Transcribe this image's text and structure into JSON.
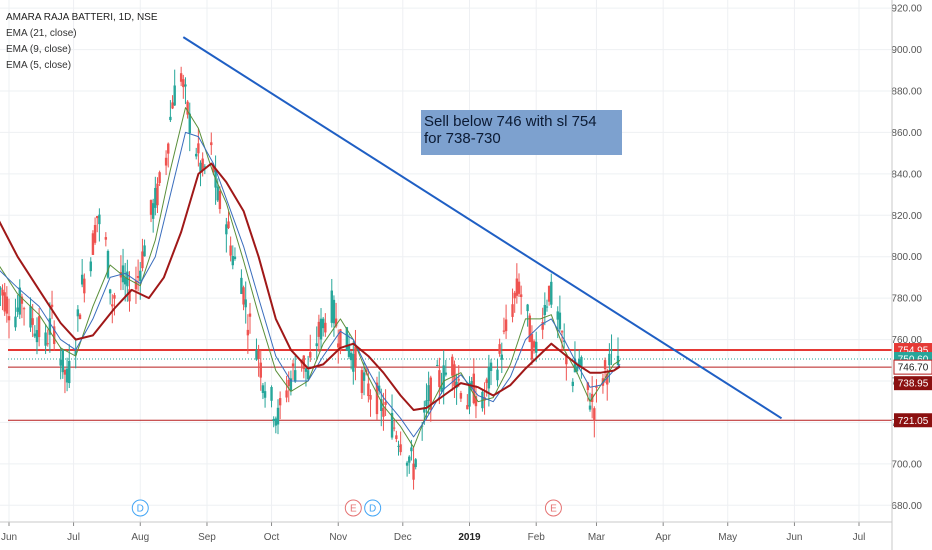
{
  "legend": {
    "title": "AMARA RAJA BATTERI, 1D, NSE",
    "indicators": [
      "EMA (21, close)",
      "EMA (9, close)",
      "EMA (5, close)"
    ]
  },
  "annotation": {
    "line1": "Sell below 746 with sl 754",
    "line2": "for 738-730"
  },
  "colors": {
    "up": "#26a69a",
    "down": "#ef5350",
    "ema21": "#a01818",
    "ema9": "#3a6dbd",
    "ema5": "#5a8f3a",
    "trendline": "#1f5fc4",
    "axis_text": "#555555",
    "grid": "#eef0f3"
  },
  "chart_data": {
    "type": "candlestick",
    "y_axis": {
      "range": [
        670,
        922
      ],
      "ticks": [
        "680.00",
        "700.00",
        "720.00",
        "740.00",
        "760.00",
        "780.00",
        "800.00",
        "820.00",
        "840.00",
        "860.00",
        "880.00",
        "900.00",
        "920.00"
      ]
    },
    "x_axis": {
      "ticks": [
        {
          "label": "Jun",
          "date": "2018-06-01"
        },
        {
          "label": "Jul",
          "date": "2018-07-01"
        },
        {
          "label": "Aug",
          "date": "2018-08-01"
        },
        {
          "label": "Sep",
          "date": "2018-09-01"
        },
        {
          "label": "Oct",
          "date": "2018-10-01"
        },
        {
          "label": "Nov",
          "date": "2018-11-01"
        },
        {
          "label": "Dec",
          "date": "2018-12-01"
        },
        {
          "label": "2019",
          "date": "2019-01-01",
          "bold": true
        },
        {
          "label": "Feb",
          "date": "2019-02-01"
        },
        {
          "label": "Mar",
          "date": "2019-03-01"
        },
        {
          "label": "Apr",
          "date": "2019-04-01"
        },
        {
          "label": "May",
          "date": "2019-05-01"
        },
        {
          "label": "Jun",
          "date": "2019-06-01"
        },
        {
          "label": "Jul",
          "date": "2019-07-01"
        }
      ]
    },
    "price_levels": [
      {
        "label": "754.95",
        "value": 754.95,
        "color": "#e53935",
        "style": "solid",
        "tag": "filled-red"
      },
      {
        "label": "750.60",
        "value": 750.6,
        "color": "#26a69a",
        "style": "dotted",
        "tag": "filled-teal"
      },
      {
        "label": "746.70",
        "value": 746.7,
        "color": "#b71c1c",
        "style": "solid",
        "tag": "outline"
      },
      {
        "label": "738.95",
        "value": 738.95,
        "color": "#b71c1c",
        "style": "none",
        "tag": "filled-darkred"
      },
      {
        "label": "721.05",
        "value": 721.05,
        "color": "#b71c1c",
        "style": "solid",
        "tag": "filled-darkred"
      }
    ],
    "trendline": {
      "from": {
        "date": "2018-08-21",
        "value": 906
      },
      "to": {
        "date": "2019-05-26",
        "value": 722
      }
    },
    "events": [
      {
        "label": "D",
        "date": "2018-08-01",
        "kind": "dividend"
      },
      {
        "label": "E",
        "date": "2018-11-08",
        "kind": "earnings"
      },
      {
        "label": "D",
        "date": "2018-11-17",
        "kind": "dividend"
      },
      {
        "label": "E",
        "date": "2019-02-09",
        "kind": "earnings"
      }
    ],
    "ema21": [
      [
        "2018-05-26",
        820
      ],
      [
        "2018-06-05",
        800
      ],
      [
        "2018-06-15",
        784
      ],
      [
        "2018-06-25",
        768
      ],
      [
        "2018-07-02",
        760
      ],
      [
        "2018-07-10",
        762
      ],
      [
        "2018-07-20",
        775
      ],
      [
        "2018-07-28",
        784
      ],
      [
        "2018-08-05",
        780
      ],
      [
        "2018-08-12",
        790
      ],
      [
        "2018-08-20",
        812
      ],
      [
        "2018-08-28",
        840
      ],
      [
        "2018-09-03",
        845
      ],
      [
        "2018-09-10",
        836
      ],
      [
        "2018-09-18",
        822
      ],
      [
        "2018-09-25",
        800
      ],
      [
        "2018-10-03",
        770
      ],
      [
        "2018-10-10",
        755
      ],
      [
        "2018-10-18",
        746
      ],
      [
        "2018-10-25",
        748
      ],
      [
        "2018-11-02",
        756
      ],
      [
        "2018-11-08",
        758
      ],
      [
        "2018-11-15",
        752
      ],
      [
        "2018-11-22",
        744
      ],
      [
        "2018-11-30",
        733
      ],
      [
        "2018-12-06",
        726
      ],
      [
        "2018-12-12",
        727
      ],
      [
        "2018-12-20",
        733
      ],
      [
        "2018-12-28",
        739
      ],
      [
        "2019-01-05",
        737
      ],
      [
        "2019-01-12",
        733
      ],
      [
        "2019-01-20",
        738
      ],
      [
        "2019-01-27",
        746
      ],
      [
        "2019-02-03",
        753
      ],
      [
        "2019-02-08",
        758
      ],
      [
        "2019-02-14",
        753
      ],
      [
        "2019-02-20",
        748
      ],
      [
        "2019-02-26",
        744
      ],
      [
        "2019-03-03",
        744
      ],
      [
        "2019-03-09",
        745
      ],
      [
        "2019-03-12",
        747
      ]
    ],
    "ema9": [
      [
        "2018-05-26",
        795
      ],
      [
        "2018-06-05",
        785
      ],
      [
        "2018-06-15",
        776
      ],
      [
        "2018-06-25",
        760
      ],
      [
        "2018-07-02",
        755
      ],
      [
        "2018-07-10",
        770
      ],
      [
        "2018-07-18",
        790
      ],
      [
        "2018-07-25",
        792
      ],
      [
        "2018-08-01",
        787
      ],
      [
        "2018-08-08",
        800
      ],
      [
        "2018-08-15",
        830
      ],
      [
        "2018-08-22",
        860
      ],
      [
        "2018-08-28",
        858
      ],
      [
        "2018-09-04",
        845
      ],
      [
        "2018-09-10",
        828
      ],
      [
        "2018-09-18",
        805
      ],
      [
        "2018-09-25",
        780
      ],
      [
        "2018-10-03",
        752
      ],
      [
        "2018-10-10",
        740
      ],
      [
        "2018-10-18",
        740
      ],
      [
        "2018-10-25",
        752
      ],
      [
        "2018-11-02",
        764
      ],
      [
        "2018-11-08",
        760
      ],
      [
        "2018-11-15",
        745
      ],
      [
        "2018-11-22",
        732
      ],
      [
        "2018-11-30",
        722
      ],
      [
        "2018-12-06",
        713
      ],
      [
        "2018-12-12",
        722
      ],
      [
        "2018-12-20",
        736
      ],
      [
        "2018-12-28",
        743
      ],
      [
        "2019-01-05",
        733
      ],
      [
        "2019-01-12",
        730
      ],
      [
        "2019-01-20",
        742
      ],
      [
        "2019-01-27",
        760
      ],
      [
        "2019-02-03",
        767
      ],
      [
        "2019-02-08",
        770
      ],
      [
        "2019-02-14",
        760
      ],
      [
        "2019-02-20",
        748
      ],
      [
        "2019-02-26",
        737
      ],
      [
        "2019-03-03",
        738
      ],
      [
        "2019-03-09",
        745
      ],
      [
        "2019-03-12",
        748
      ]
    ],
    "ema5": [
      [
        "2018-05-26",
        798
      ],
      [
        "2018-06-05",
        782
      ],
      [
        "2018-06-15",
        772
      ],
      [
        "2018-06-25",
        756
      ],
      [
        "2018-07-02",
        752
      ],
      [
        "2018-07-10",
        776
      ],
      [
        "2018-07-18",
        796
      ],
      [
        "2018-07-25",
        790
      ],
      [
        "2018-08-01",
        786
      ],
      [
        "2018-08-08",
        808
      ],
      [
        "2018-08-15",
        842
      ],
      [
        "2018-08-22",
        872
      ],
      [
        "2018-08-28",
        862
      ],
      [
        "2018-09-04",
        840
      ],
      [
        "2018-09-10",
        826
      ],
      [
        "2018-09-18",
        798
      ],
      [
        "2018-09-25",
        772
      ],
      [
        "2018-10-03",
        745
      ],
      [
        "2018-10-10",
        735
      ],
      [
        "2018-10-18",
        740
      ],
      [
        "2018-10-25",
        758
      ],
      [
        "2018-11-02",
        770
      ],
      [
        "2018-11-08",
        760
      ],
      [
        "2018-11-15",
        742
      ],
      [
        "2018-11-22",
        728
      ],
      [
        "2018-11-30",
        718
      ],
      [
        "2018-12-06",
        708
      ],
      [
        "2018-12-12",
        724
      ],
      [
        "2018-12-20",
        740
      ],
      [
        "2018-12-28",
        744
      ],
      [
        "2019-01-05",
        730
      ],
      [
        "2019-01-12",
        732
      ],
      [
        "2019-01-20",
        748
      ],
      [
        "2019-01-27",
        770
      ],
      [
        "2019-02-03",
        770
      ],
      [
        "2019-02-08",
        772
      ],
      [
        "2019-02-14",
        755
      ],
      [
        "2019-02-20",
        744
      ],
      [
        "2019-02-26",
        730
      ],
      [
        "2019-03-03",
        738
      ],
      [
        "2019-03-09",
        748
      ],
      [
        "2019-03-12",
        750
      ]
    ],
    "candles_close_path": [
      [
        "2018-05-25",
        792
      ],
      [
        "2018-05-28",
        785
      ],
      [
        "2018-05-31",
        778
      ],
      [
        "2018-06-04",
        772
      ],
      [
        "2018-06-07",
        780
      ],
      [
        "2018-06-11",
        770
      ],
      [
        "2018-06-14",
        766
      ],
      [
        "2018-06-18",
        758
      ],
      [
        "2018-06-21",
        770
      ],
      [
        "2018-06-25",
        752
      ],
      [
        "2018-06-28",
        740
      ],
      [
        "2018-07-02",
        760
      ],
      [
        "2018-07-05",
        786
      ],
      [
        "2018-07-09",
        800
      ],
      [
        "2018-07-12",
        820
      ],
      [
        "2018-07-16",
        806
      ],
      [
        "2018-07-19",
        778
      ],
      [
        "2018-07-23",
        790
      ],
      [
        "2018-07-26",
        785
      ],
      [
        "2018-07-30",
        786
      ],
      [
        "2018-08-02",
        800
      ],
      [
        "2018-08-06",
        820
      ],
      [
        "2018-08-09",
        830
      ],
      [
        "2018-08-13",
        848
      ],
      [
        "2018-08-16",
        876
      ],
      [
        "2018-08-20",
        888
      ],
      [
        "2018-08-23",
        870
      ],
      [
        "2018-08-27",
        852
      ],
      [
        "2018-08-30",
        840
      ],
      [
        "2018-09-03",
        850
      ],
      [
        "2018-09-06",
        828
      ],
      [
        "2018-09-10",
        818
      ],
      [
        "2018-09-13",
        800
      ],
      [
        "2018-09-17",
        790
      ],
      [
        "2018-09-20",
        770
      ],
      [
        "2018-09-24",
        758
      ],
      [
        "2018-09-27",
        742
      ],
      [
        "2018-10-01",
        730
      ],
      [
        "2018-10-04",
        722
      ],
      [
        "2018-10-08",
        736
      ],
      [
        "2018-10-11",
        744
      ],
      [
        "2018-10-15",
        752
      ],
      [
        "2018-10-18",
        742
      ],
      [
        "2018-10-22",
        760
      ],
      [
        "2018-10-25",
        768
      ],
      [
        "2018-10-29",
        776
      ],
      [
        "2018-11-01",
        764
      ],
      [
        "2018-11-05",
        758
      ],
      [
        "2018-11-08",
        752
      ],
      [
        "2018-11-12",
        742
      ],
      [
        "2018-11-15",
        736
      ],
      [
        "2018-11-19",
        732
      ],
      [
        "2018-11-22",
        726
      ],
      [
        "2018-11-26",
        720
      ],
      [
        "2018-11-29",
        714
      ],
      [
        "2018-12-03",
        706
      ],
      [
        "2018-12-06",
        698
      ],
      [
        "2018-12-10",
        716
      ],
      [
        "2018-12-13",
        732
      ],
      [
        "2018-12-17",
        740
      ],
      [
        "2018-12-20",
        742
      ],
      [
        "2018-12-24",
        748
      ],
      [
        "2018-12-27",
        740
      ],
      [
        "2018-12-31",
        730
      ],
      [
        "2019-01-03",
        736
      ],
      [
        "2019-01-07",
        728
      ],
      [
        "2019-01-10",
        740
      ],
      [
        "2019-01-14",
        748
      ],
      [
        "2019-01-17",
        760
      ],
      [
        "2019-01-21",
        776
      ],
      [
        "2019-01-24",
        786
      ],
      [
        "2019-01-28",
        770
      ],
      [
        "2019-01-31",
        752
      ],
      [
        "2019-02-04",
        772
      ],
      [
        "2019-02-07",
        784
      ],
      [
        "2019-02-11",
        770
      ],
      [
        "2019-02-14",
        756
      ],
      [
        "2019-02-18",
        742
      ],
      [
        "2019-02-21",
        748
      ],
      [
        "2019-02-25",
        734
      ],
      [
        "2019-02-28",
        728
      ],
      [
        "2019-03-04",
        742
      ],
      [
        "2019-03-07",
        748
      ],
      [
        "2019-03-11",
        752
      ],
      [
        "2019-03-12",
        766
      ]
    ]
  }
}
